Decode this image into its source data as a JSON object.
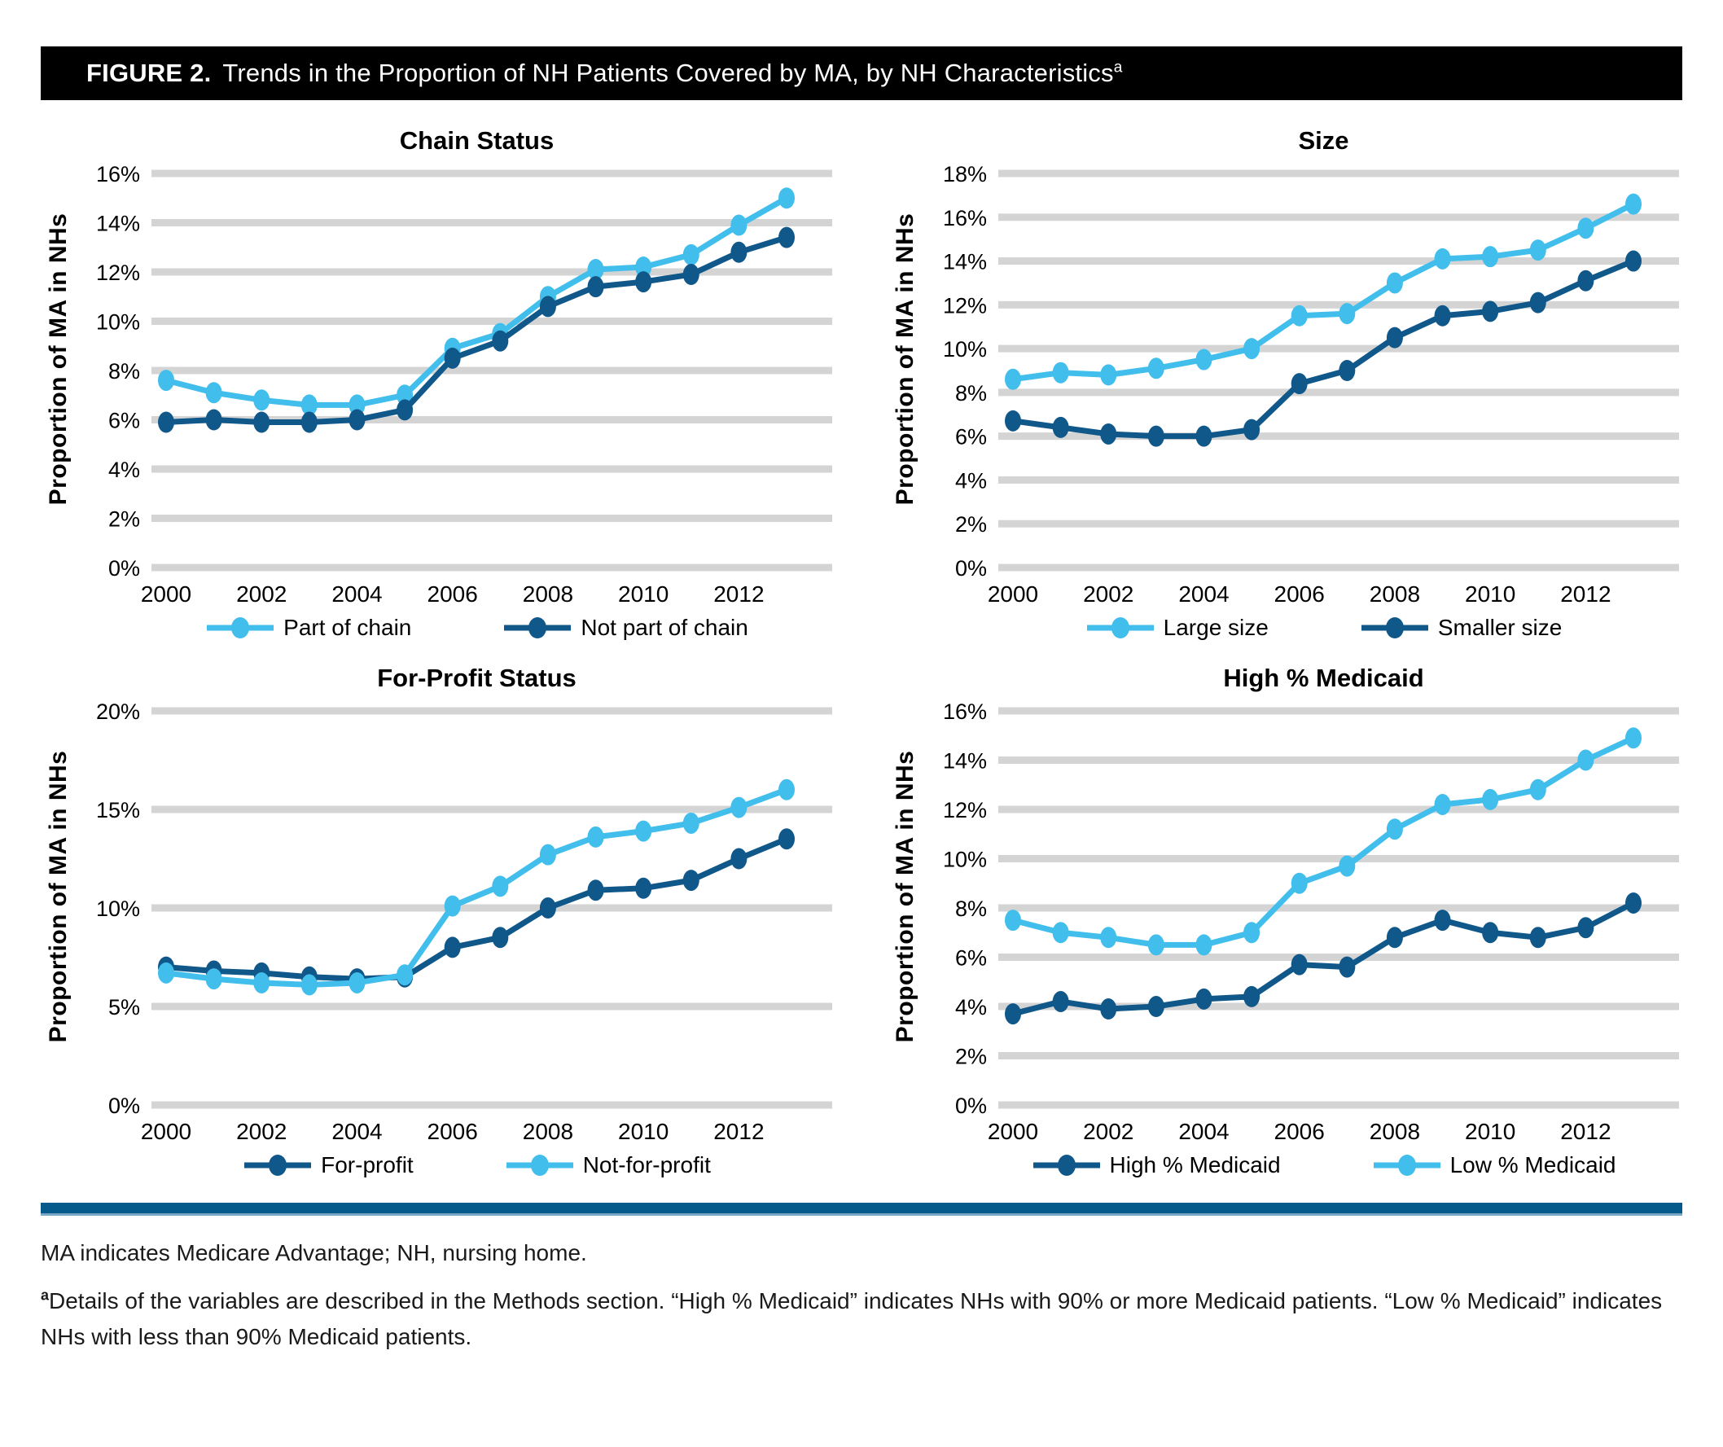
{
  "figure": {
    "label": "FIGURE 2.",
    "title": "Trends in the Proportion of NH Patients Covered by MA, by NH Characteristics",
    "title_superscript": "a"
  },
  "colors": {
    "light_blue": "#41BEEB",
    "dark_blue": "#10578A",
    "gridline": "#D4D4D4",
    "header_bg": "#000000",
    "divider": "#055A8C"
  },
  "chart_data": [
    {
      "type": "line",
      "title": "Chain Status",
      "ylabel": "Proportion of MA in NHs",
      "x": [
        2000,
        2001,
        2002,
        2003,
        2004,
        2005,
        2006,
        2007,
        2008,
        2009,
        2010,
        2011,
        2012,
        2013
      ],
      "x_tick_labels": [
        "2000",
        "2002",
        "2004",
        "2006",
        "2008",
        "2010",
        "2012"
      ],
      "ylim": [
        0,
        16
      ],
      "ytick_step": 2,
      "grid": "horizontal",
      "legend_position": "bottom",
      "series": [
        {
          "name": "Part of chain",
          "color_key": "light_blue",
          "values": [
            7.6,
            7.1,
            6.8,
            6.6,
            6.6,
            7.0,
            8.9,
            9.5,
            11.0,
            12.1,
            12.2,
            12.7,
            13.9,
            15.0
          ]
        },
        {
          "name": "Not part of chain",
          "color_key": "dark_blue",
          "values": [
            5.9,
            6.0,
            5.9,
            5.9,
            6.0,
            6.4,
            8.5,
            9.2,
            10.6,
            11.4,
            11.6,
            11.9,
            12.8,
            13.4
          ]
        }
      ]
    },
    {
      "type": "line",
      "title": "Size",
      "ylabel": "Proportion of MA in NHs",
      "x": [
        2000,
        2001,
        2002,
        2003,
        2004,
        2005,
        2006,
        2007,
        2008,
        2009,
        2010,
        2011,
        2012,
        2013
      ],
      "x_tick_labels": [
        "2000",
        "2002",
        "2004",
        "2006",
        "2008",
        "2010",
        "2012"
      ],
      "ylim": [
        0,
        18
      ],
      "ytick_step": 2,
      "grid": "horizontal",
      "legend_position": "bottom",
      "series": [
        {
          "name": "Large size",
          "color_key": "light_blue",
          "values": [
            8.6,
            8.9,
            8.8,
            9.1,
            9.5,
            10.0,
            11.5,
            11.6,
            13.0,
            14.1,
            14.2,
            14.5,
            15.5,
            16.6
          ]
        },
        {
          "name": "Smaller size",
          "color_key": "dark_blue",
          "values": [
            6.7,
            6.4,
            6.1,
            6.0,
            6.0,
            6.3,
            8.4,
            9.0,
            10.5,
            11.5,
            11.7,
            12.1,
            13.1,
            14.0
          ]
        }
      ]
    },
    {
      "type": "line",
      "title": "For-Profit Status",
      "ylabel": "Proportion of MA in NHs",
      "x": [
        2000,
        2001,
        2002,
        2003,
        2004,
        2005,
        2006,
        2007,
        2008,
        2009,
        2010,
        2011,
        2012,
        2013
      ],
      "x_tick_labels": [
        "2000",
        "2002",
        "2004",
        "2006",
        "2008",
        "2010",
        "2012"
      ],
      "ylim": [
        0,
        20
      ],
      "ytick_step": 5,
      "grid": "horizontal",
      "legend_position": "bottom",
      "series": [
        {
          "name": "For-profit",
          "color_key": "dark_blue",
          "values": [
            7.0,
            6.8,
            6.7,
            6.5,
            6.4,
            6.5,
            8.0,
            8.5,
            10.0,
            10.9,
            11.0,
            11.4,
            12.5,
            13.5
          ]
        },
        {
          "name": "Not-for-profit",
          "color_key": "light_blue",
          "values": [
            6.7,
            6.4,
            6.2,
            6.1,
            6.2,
            6.6,
            10.1,
            11.1,
            12.7,
            13.6,
            13.9,
            14.3,
            15.1,
            16.0
          ]
        }
      ]
    },
    {
      "type": "line",
      "title": "High % Medicaid",
      "ylabel": "Proportion of MA in NHs",
      "x": [
        2000,
        2001,
        2002,
        2003,
        2004,
        2005,
        2006,
        2007,
        2008,
        2009,
        2010,
        2011,
        2012,
        2013
      ],
      "x_tick_labels": [
        "2000",
        "2002",
        "2004",
        "2006",
        "2008",
        "2010",
        "2012"
      ],
      "ylim": [
        0,
        16
      ],
      "ytick_step": 2,
      "grid": "horizontal",
      "legend_position": "bottom",
      "series": [
        {
          "name": "High % Medicaid",
          "color_key": "dark_blue",
          "values": [
            3.7,
            4.2,
            3.9,
            4.0,
            4.3,
            4.4,
            5.7,
            5.6,
            6.8,
            7.5,
            7.0,
            6.8,
            7.2,
            8.2
          ]
        },
        {
          "name": "Low % Medicaid",
          "color_key": "light_blue",
          "values": [
            7.5,
            7.0,
            6.8,
            6.5,
            6.5,
            7.0,
            9.0,
            9.7,
            11.2,
            12.2,
            12.4,
            12.8,
            14.0,
            14.9
          ]
        }
      ]
    }
  ],
  "footnotes": {
    "abbrev": "MA indicates Medicare Advantage; NH, nursing home.",
    "detail_superscript": "a",
    "detail": "Details of the variables are described in the Methods section. “High % Medicaid” indicates NHs with 90% or more Medicaid patients. “Low % Medicaid” indicates NHs with less than 90% Medicaid patients."
  }
}
